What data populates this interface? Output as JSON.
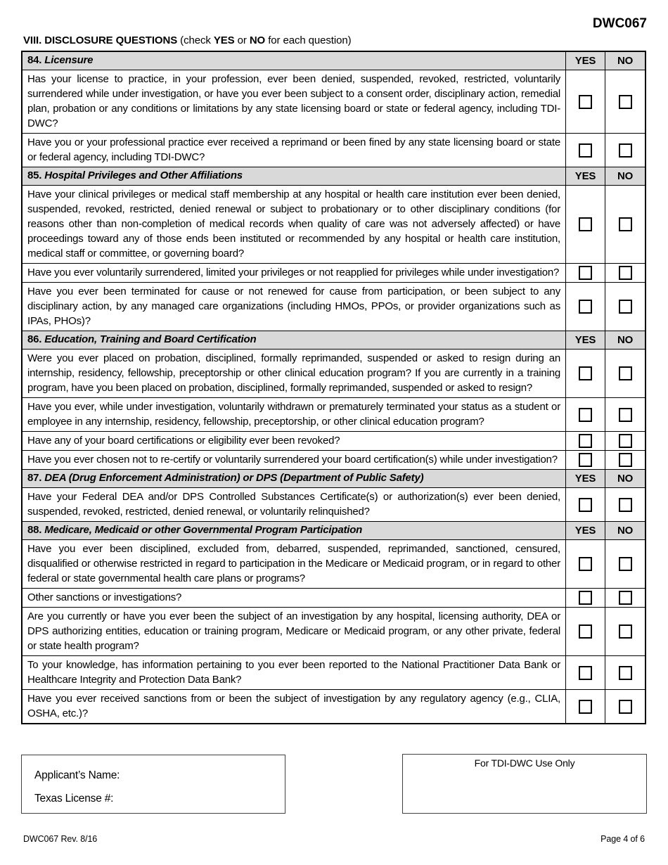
{
  "header": {
    "form_code": "DWC067",
    "title": "VIII. DISCLOSURE QUESTIONS",
    "subtitle_check": " (check ",
    "subtitle_yes": "YES",
    "subtitle_or": " or ",
    "subtitle_no": "NO",
    "subtitle_end": " for each question)"
  },
  "table": {
    "col_yes": "YES",
    "col_no": "NO",
    "sections": [
      {
        "number": "84.",
        "title": "Licensure",
        "questions": [
          {
            "text": "Has your license to practice, in your profession, ever been denied, suspended, revoked, restricted, voluntarily surrendered while under investigation, or have you ever been subject to a consent order, disciplinary action, remedial plan, probation or any conditions or limitations by any state licensing board or state or federal agency, including TDI-DWC?"
          },
          {
            "text": "Have you or your professional practice ever received a reprimand or been fined by any state licensing board or state or federal agency, including TDI-DWC?"
          }
        ]
      },
      {
        "number": "85.",
        "title": "Hospital Privileges and Other Affiliations",
        "questions": [
          {
            "text": "Have your clinical privileges or medical staff membership at any hospital or health care institution ever been denied, suspended, revoked, restricted, denied renewal or subject to probationary or to other disciplinary conditions (for reasons other than non-completion of medical records when quality of care was not adversely affected) or have proceedings toward any of those ends been instituted or recommended by any hospital or health care institution, medical staff or committee, or governing board?"
          },
          {
            "text": "Have you ever voluntarily surrendered, limited your privileges or not reapplied for privileges while under investigation?"
          },
          {
            "text": "Have you ever been terminated for cause or not renewed for cause from participation, or been subject to any disciplinary action, by any managed care organizations (including HMOs, PPOs, or provider organizations such as IPAs, PHOs)?"
          }
        ]
      },
      {
        "number": "86.",
        "title": "Education, Training and Board Certification",
        "questions": [
          {
            "text": "Were you ever placed on probation, disciplined, formally reprimanded, suspended or asked to resign during an internship, residency, fellowship, preceptorship or other clinical education program?  If you are currently in a training program, have you been placed on probation, disciplined, formally reprimanded, suspended or asked to resign?"
          },
          {
            "text": "Have you ever, while under investigation, voluntarily withdrawn or prematurely terminated your status as a student or employee in any internship, residency, fellowship, preceptorship, or other clinical education program?"
          },
          {
            "text": "Have any of your board certifications or eligibility ever been revoked?"
          },
          {
            "text": "Have you ever chosen not to re-certify or voluntarily surrendered your board certification(s) while under investigation?"
          }
        ]
      },
      {
        "number": "87.",
        "title": "DEA (Drug Enforcement Administration) or DPS (Department of Public Safety)",
        "questions": [
          {
            "text": "Have your Federal DEA and/or DPS Controlled Substances Certificate(s) or authorization(s) ever been denied, suspended, revoked, restricted, denied renewal, or voluntarily relinquished?"
          }
        ]
      },
      {
        "number": "88.",
        "title": "Medicare, Medicaid or other Governmental Program Participation",
        "questions": [
          {
            "text": "Have you ever been disciplined, excluded from, debarred, suspended, reprimanded, sanctioned, censured, disqualified or otherwise restricted in regard to participation in the Medicare or Medicaid program, or in regard to other federal or state governmental health care plans or programs?"
          },
          {
            "text": "Other sanctions or investigations?"
          },
          {
            "text": "Are you currently or have you ever been the subject of an investigation by any hospital, licensing authority, DEA or DPS authorizing entities, education or training program, Medicare or Medicaid program, or any other private, federal or state health program?"
          },
          {
            "text": "To your knowledge, has information pertaining to you ever been reported to the National Practitioner Data Bank or Healthcare Integrity and Protection Data Bank?"
          },
          {
            "text": "Have you ever received sanctions from or been the subject of investigation by any regulatory agency (e.g., CLIA, OSHA, etc.)?"
          }
        ]
      }
    ]
  },
  "bottom": {
    "applicant_name_label": "Applicant’s Name:",
    "texas_license_label": "Texas License #:",
    "tdi_use_only_label": "For TDI-DWC Use Only"
  },
  "footer": {
    "left": "DWC067 Rev. 8/16",
    "right": "Page 4 of 6"
  }
}
